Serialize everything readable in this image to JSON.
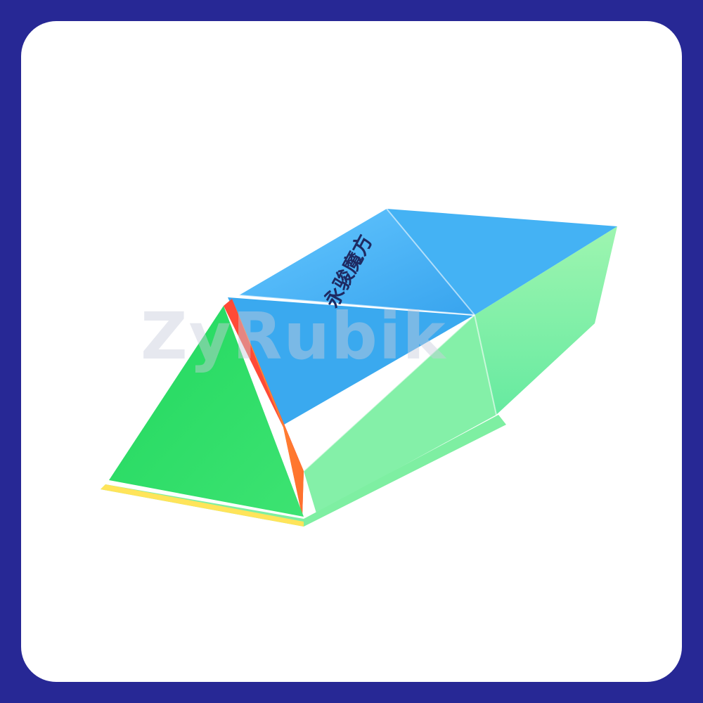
{
  "image": {
    "frame_color": "#272895",
    "card_color": "#ffffff",
    "subject": "pyramid-puzzle-cube"
  },
  "watermark": {
    "text": "ZyRubik"
  },
  "product": {
    "logo_text": "永骏魔方",
    "colors": {
      "blue": "#39a6ef",
      "blue_light": "#5ec0fb",
      "green": "#2ddc6a",
      "green_light": "#9af3a6",
      "red": "#ff3d3d",
      "orange": "#ff8a33",
      "yellow": "#ffd23a"
    }
  }
}
